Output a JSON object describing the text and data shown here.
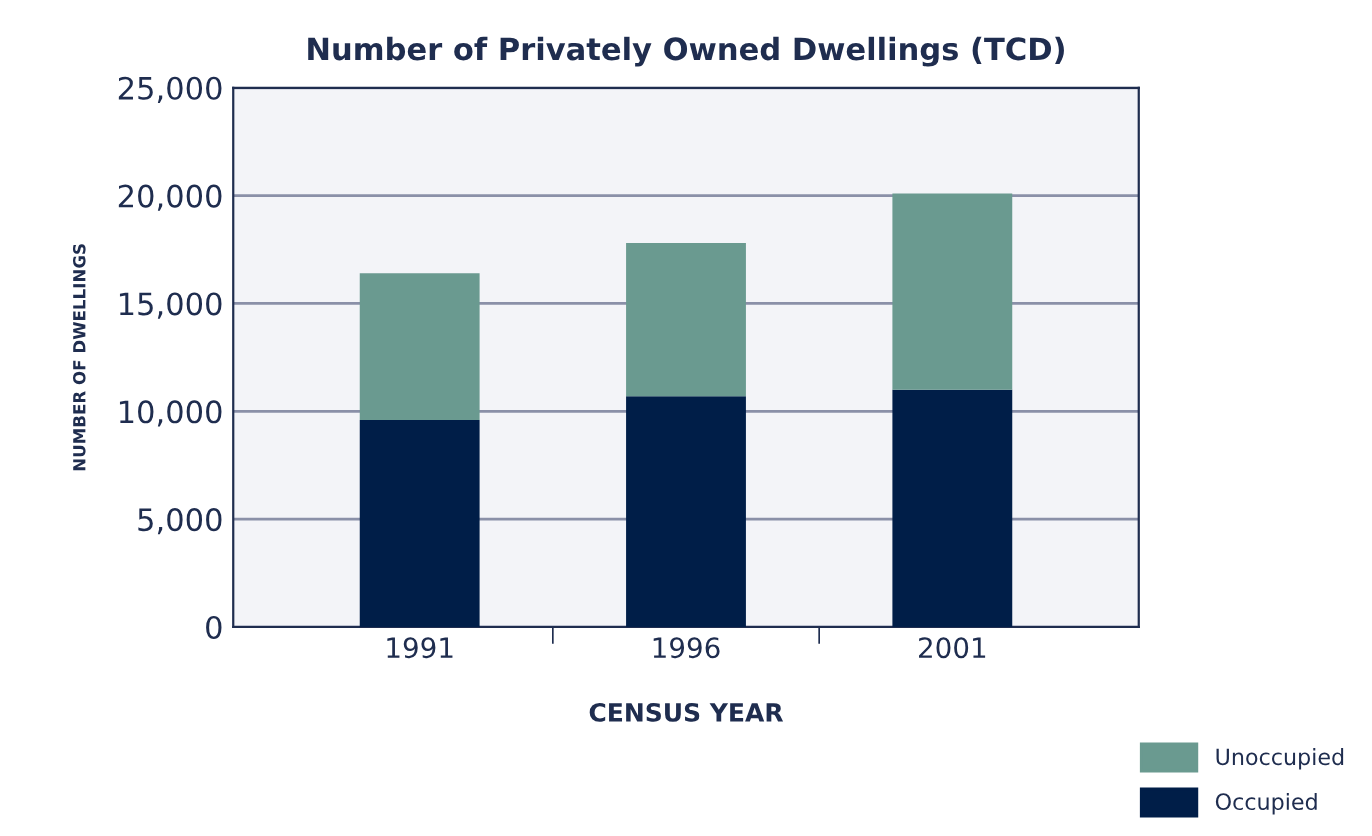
{
  "chart_data": {
    "type": "bar",
    "stacked": true,
    "title": "Number of Privately Owned Dwellings (TCD)",
    "xlabel": "CENSUS YEAR",
    "ylabel": "NUMBER OF DWELLINGS",
    "categories": [
      "1991",
      "1996",
      "2001"
    ],
    "series": [
      {
        "name": "Occupied",
        "color": "#001e48",
        "values": [
          9600,
          10700,
          11000
        ]
      },
      {
        "name": "Unoccupied",
        "color": "#6a9a90",
        "values": [
          6800,
          7100,
          9100
        ]
      }
    ],
    "ylim": [
      0,
      25000
    ],
    "yticks": [
      {
        "value": 0,
        "label": "0"
      },
      {
        "value": 5000,
        "label": "5,000"
      },
      {
        "value": 10000,
        "label": "10,000"
      },
      {
        "value": 15000,
        "label": "15,000"
      },
      {
        "value": 20000,
        "label": "20,000"
      },
      {
        "value": 25000,
        "label": "25,000"
      }
    ],
    "grid": "y",
    "legend": "bottom right"
  }
}
